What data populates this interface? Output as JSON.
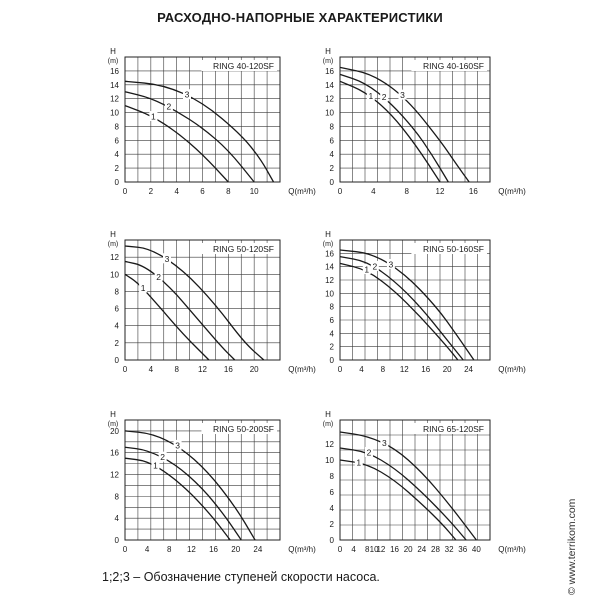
{
  "page": {
    "title": "РАСХОДНО-НАПОРНЫЕ ХАРАКТЕРИСТИКИ",
    "footnote": "1;2;3 – Обозначение ступеней скорости насоса.",
    "watermark": "© www.terrikom.com"
  },
  "colors": {
    "grid": "#3a3a3a",
    "curve": "#1a1a1a",
    "frame": "#222222"
  },
  "chart_data": [
    {
      "type": "line",
      "title": "RING 40-120SF",
      "ylabel": "H",
      "yunit": "(m)",
      "xlabel": "Q(m³/h)",
      "xlim": [
        0,
        12
      ],
      "ylim": [
        0,
        18
      ],
      "xticks": [
        0,
        2,
        4,
        6,
        8,
        10
      ],
      "yticks": [
        0,
        2,
        4,
        6,
        8,
        10,
        12,
        14,
        16
      ],
      "series": [
        {
          "name": "1",
          "points": [
            [
              0,
              11
            ],
            [
              2,
              9.6
            ],
            [
              4,
              7.2
            ],
            [
              6,
              4.0
            ],
            [
              8,
              0
            ]
          ],
          "label_x": 2.2
        },
        {
          "name": "2",
          "points": [
            [
              0,
              13
            ],
            [
              2,
              12.1
            ],
            [
              4,
              10.2
            ],
            [
              6,
              7.8
            ],
            [
              8,
              4.6
            ],
            [
              10,
              0
            ]
          ],
          "label_x": 3.4
        },
        {
          "name": "3",
          "points": [
            [
              0,
              14.5
            ],
            [
              3,
              14
            ],
            [
              6,
              11.5
            ],
            [
              9,
              6.8
            ],
            [
              10.5,
              3.3
            ],
            [
              11.5,
              0
            ]
          ],
          "label_x": 4.8
        }
      ]
    },
    {
      "type": "line",
      "title": "RING 40-160SF",
      "ylabel": "H",
      "yunit": "(m)",
      "xlabel": "Q(m³/h)",
      "xlim": [
        0,
        18
      ],
      "ylim": [
        0,
        18
      ],
      "xticks": [
        0,
        4,
        8,
        12,
        16
      ],
      "yticks": [
        0,
        2,
        4,
        6,
        8,
        10,
        12,
        14,
        16
      ],
      "series": [
        {
          "name": "1",
          "points": [
            [
              0,
              14.5
            ],
            [
              3,
              13
            ],
            [
              6,
              10
            ],
            [
              9,
              5.5
            ],
            [
              12,
              0
            ]
          ],
          "label_x": 3.7
        },
        {
          "name": "2",
          "points": [
            [
              0,
              15.5
            ],
            [
              3,
              14.3
            ],
            [
              6,
              11.5
            ],
            [
              9,
              7.5
            ],
            [
              11,
              4
            ],
            [
              13,
              0
            ]
          ],
          "label_x": 5.3
        },
        {
          "name": "3",
          "points": [
            [
              0,
              16.5
            ],
            [
              4,
              15.5
            ],
            [
              8,
              12
            ],
            [
              12,
              6
            ],
            [
              14,
              2.5
            ],
            [
              15.5,
              0
            ]
          ],
          "label_x": 7.5
        }
      ]
    },
    {
      "type": "line",
      "title": "RING 50-120SF",
      "ylabel": "H",
      "yunit": "(m)",
      "xlabel": "Q(m³/h)",
      "xlim": [
        0,
        24
      ],
      "ylim": [
        0,
        14
      ],
      "xticks": [
        0,
        4,
        8,
        12,
        16,
        20
      ],
      "yticks": [
        0,
        2,
        4,
        6,
        8,
        10,
        12
      ],
      "series": [
        {
          "name": "1",
          "points": [
            [
              0,
              10
            ],
            [
              2,
              9
            ],
            [
              5,
              6.5
            ],
            [
              9,
              3
            ],
            [
              13,
              0
            ]
          ],
          "label_x": 2.8
        },
        {
          "name": "2",
          "points": [
            [
              0,
              11.5
            ],
            [
              3,
              11
            ],
            [
              7,
              8.5
            ],
            [
              11,
              5
            ],
            [
              15,
              1.5
            ],
            [
              17,
              0
            ]
          ],
          "label_x": 5.2
        },
        {
          "name": "3",
          "points": [
            [
              0,
              13.3
            ],
            [
              4,
              13
            ],
            [
              9,
              10.5
            ],
            [
              14,
              6.5
            ],
            [
              18.5,
              2
            ],
            [
              21.5,
              0
            ]
          ],
          "label_x": 6.5
        }
      ]
    },
    {
      "type": "line",
      "title": "RING 50-160SF",
      "ylabel": "H",
      "yunit": "(m)",
      "xlabel": "Q(m³/h)",
      "xlim": [
        0,
        28
      ],
      "ylim": [
        0,
        18
      ],
      "xticks": [
        0,
        4,
        8,
        12,
        16,
        20,
        24
      ],
      "yticks": [
        0,
        2,
        4,
        6,
        8,
        10,
        12,
        14,
        16
      ],
      "series": [
        {
          "name": "1",
          "points": [
            [
              0,
              14.5
            ],
            [
              5,
              13.5
            ],
            [
              10,
              10.5
            ],
            [
              15,
              6.5
            ],
            [
              20,
              2
            ],
            [
              22,
              0
            ]
          ],
          "label_x": 5.0
        },
        {
          "name": "2",
          "points": [
            [
              0,
              15.5
            ],
            [
              5,
              14.8
            ],
            [
              10,
              12
            ],
            [
              15,
              8
            ],
            [
              20,
              3
            ],
            [
              23,
              0
            ]
          ],
          "label_x": 6.5
        },
        {
          "name": "3",
          "points": [
            [
              0,
              16.5
            ],
            [
              6,
              16
            ],
            [
              12,
              13
            ],
            [
              18,
              8
            ],
            [
              22,
              3.5
            ],
            [
              25,
              0
            ]
          ],
          "label_x": 9.5
        }
      ]
    },
    {
      "type": "line",
      "title": "RING 50-200SF",
      "ylabel": "H",
      "yunit": "(m)",
      "xlabel": "Q(m³/h)",
      "xlim": [
        0,
        28
      ],
      "ylim": [
        0,
        22
      ],
      "xticks": [
        0,
        4,
        8,
        12,
        16,
        20,
        24
      ],
      "yticks": [
        0,
        4,
        8,
        12,
        16,
        20
      ],
      "series": [
        {
          "name": "1",
          "points": [
            [
              0,
              15
            ],
            [
              4,
              14.5
            ],
            [
              8,
              12
            ],
            [
              12,
              8.5
            ],
            [
              16,
              4
            ],
            [
              19,
              0
            ]
          ],
          "label_x": 5.5
        },
        {
          "name": "2",
          "points": [
            [
              0,
              17
            ],
            [
              4,
              16.5
            ],
            [
              9,
              14
            ],
            [
              14,
              9.5
            ],
            [
              18,
              4.5
            ],
            [
              21,
              0
            ]
          ],
          "label_x": 6.8
        },
        {
          "name": "3",
          "points": [
            [
              0,
              20
            ],
            [
              5,
              19.5
            ],
            [
              10,
              17
            ],
            [
              15,
              12.5
            ],
            [
              20,
              6
            ],
            [
              23.5,
              0
            ]
          ],
          "label_x": 9.5
        }
      ]
    },
    {
      "type": "line",
      "title": "RING 65-120SF",
      "ylabel": "H",
      "yunit": "(m)",
      "xlabel": "Q(m³/h)",
      "xlim": [
        0,
        44
      ],
      "ylim": [
        0,
        15
      ],
      "xticks": [
        0,
        4,
        8,
        10,
        12,
        16,
        20,
        24,
        28,
        32,
        36,
        40
      ],
      "yticks": [
        0,
        2,
        4,
        6,
        8,
        10,
        12
      ],
      "series": [
        {
          "name": "1",
          "points": [
            [
              0,
              10
            ],
            [
              8,
              9.5
            ],
            [
              16,
              7.5
            ],
            [
              24,
              4.5
            ],
            [
              30,
              2
            ],
            [
              34,
              0
            ]
          ],
          "label_x": 5.5
        },
        {
          "name": "2",
          "points": [
            [
              0,
              11.5
            ],
            [
              8,
              11
            ],
            [
              16,
              9
            ],
            [
              24,
              6
            ],
            [
              32,
              2.5
            ],
            [
              37,
              0
            ]
          ],
          "label_x": 8.5
        },
        {
          "name": "3",
          "points": [
            [
              0,
              13.5
            ],
            [
              8,
              13
            ],
            [
              16,
              11.5
            ],
            [
              24,
              8.5
            ],
            [
              32,
              4.5
            ],
            [
              40,
              0
            ]
          ],
          "label_x": 13
        }
      ]
    }
  ]
}
